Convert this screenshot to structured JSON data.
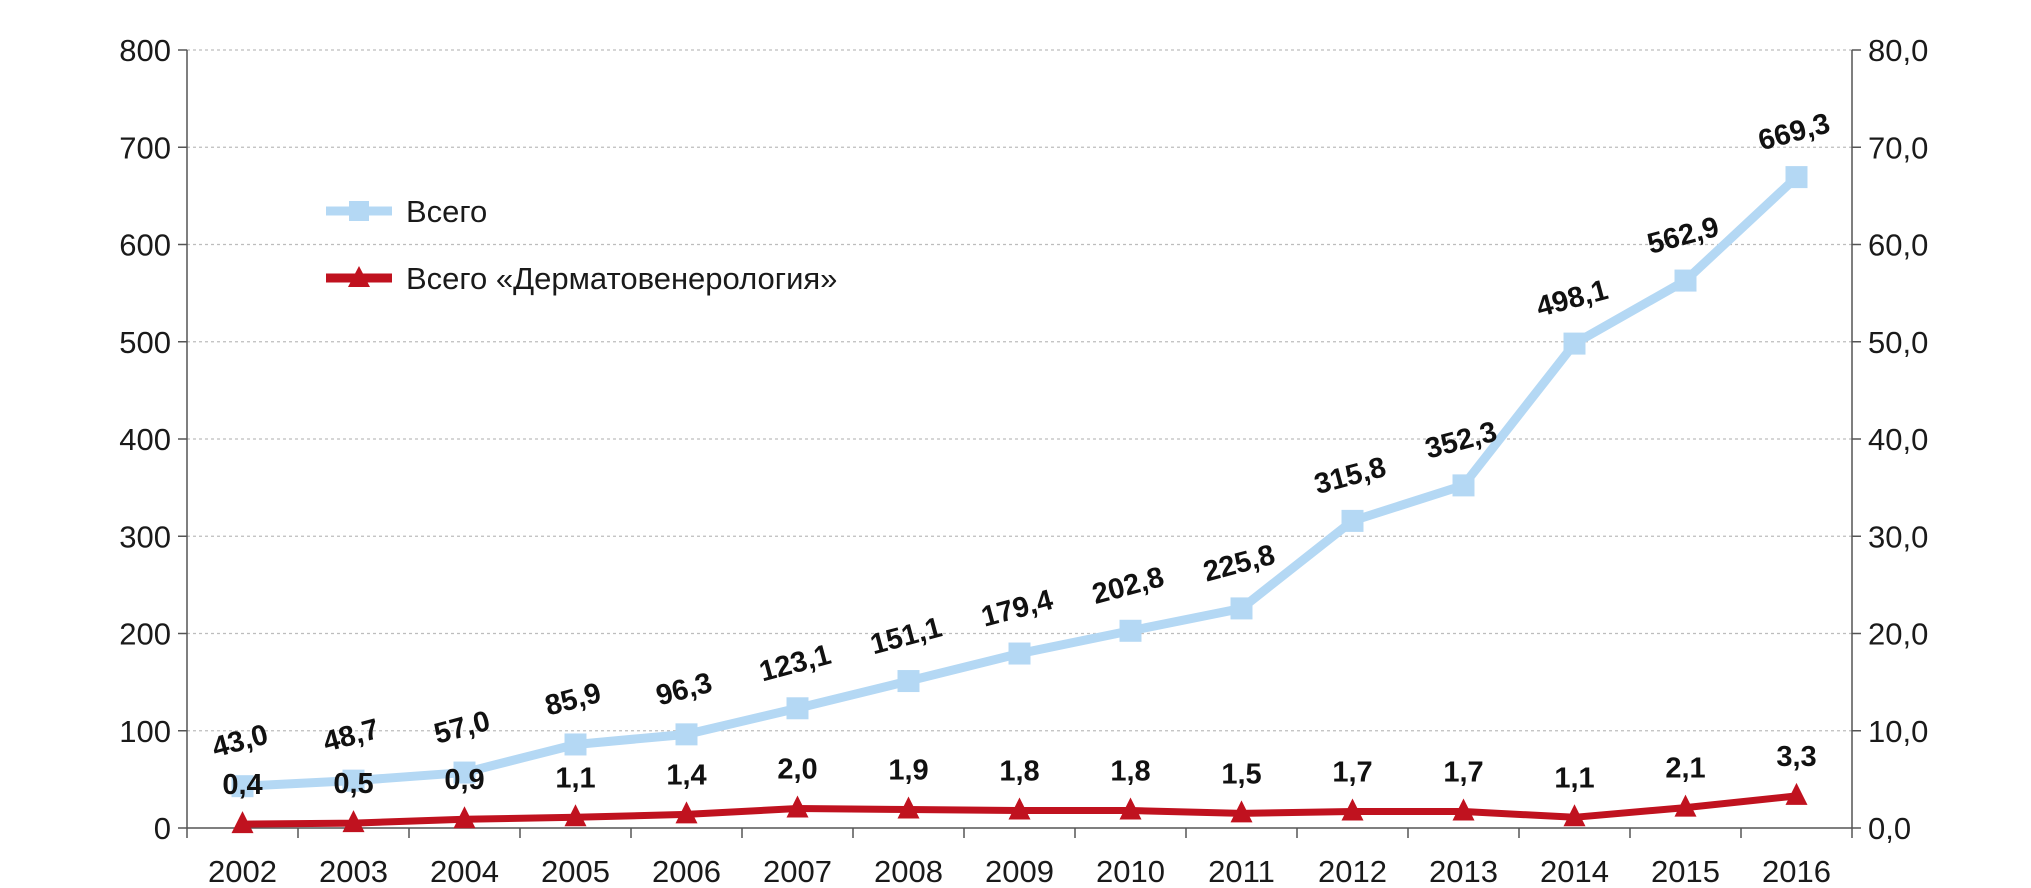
{
  "chart_data": {
    "type": "line",
    "title": "",
    "xlabel": "",
    "ylabel": "",
    "categories": [
      "2002",
      "2003",
      "2004",
      "2005",
      "2006",
      "2007",
      "2008",
      "2009",
      "2010",
      "2011",
      "2012",
      "2013",
      "2014",
      "2015",
      "2016"
    ],
    "series": [
      {
        "name": "Всего",
        "axis": "left",
        "color": "#b4d8f4",
        "marker": "square",
        "values": [
          43.0,
          48.7,
          57.0,
          85.9,
          96.3,
          123.1,
          151.1,
          179.4,
          202.8,
          225.8,
          315.8,
          352.3,
          498.1,
          562.9,
          669.3
        ],
        "labels": [
          "43,0",
          "48,7",
          "57,0",
          "85,9",
          "96,3",
          "123,1",
          "151,1",
          "179,4",
          "202,8",
          "225,8",
          "315,8",
          "352,3",
          "498,1",
          "562,9",
          "669,3"
        ]
      },
      {
        "name": "Всего «Дерматовенерология»",
        "axis": "right",
        "color": "#c0121f",
        "marker": "triangle",
        "values": [
          0.4,
          0.5,
          0.9,
          1.1,
          1.4,
          2.0,
          1.9,
          1.8,
          1.8,
          1.5,
          1.7,
          1.7,
          1.1,
          2.1,
          3.3
        ],
        "labels": [
          "0,4",
          "0,5",
          "0,9",
          "1,1",
          "1,4",
          "2,0",
          "1,9",
          "1,8",
          "1,8",
          "1,5",
          "1,7",
          "1,7",
          "1,1",
          "2,1",
          "3,3"
        ]
      }
    ],
    "y_left": {
      "ylim": [
        0,
        800
      ],
      "ticks": [
        "0",
        "100",
        "200",
        "300",
        "400",
        "500",
        "600",
        "700",
        "800"
      ]
    },
    "y_right": {
      "ylim": [
        0,
        80
      ],
      "ticks": [
        "0,0",
        "10,0",
        "20,0",
        "30,0",
        "40,0",
        "50,0",
        "60,0",
        "70,0",
        "80,0"
      ]
    },
    "grid": true,
    "legend": "top-left"
  }
}
